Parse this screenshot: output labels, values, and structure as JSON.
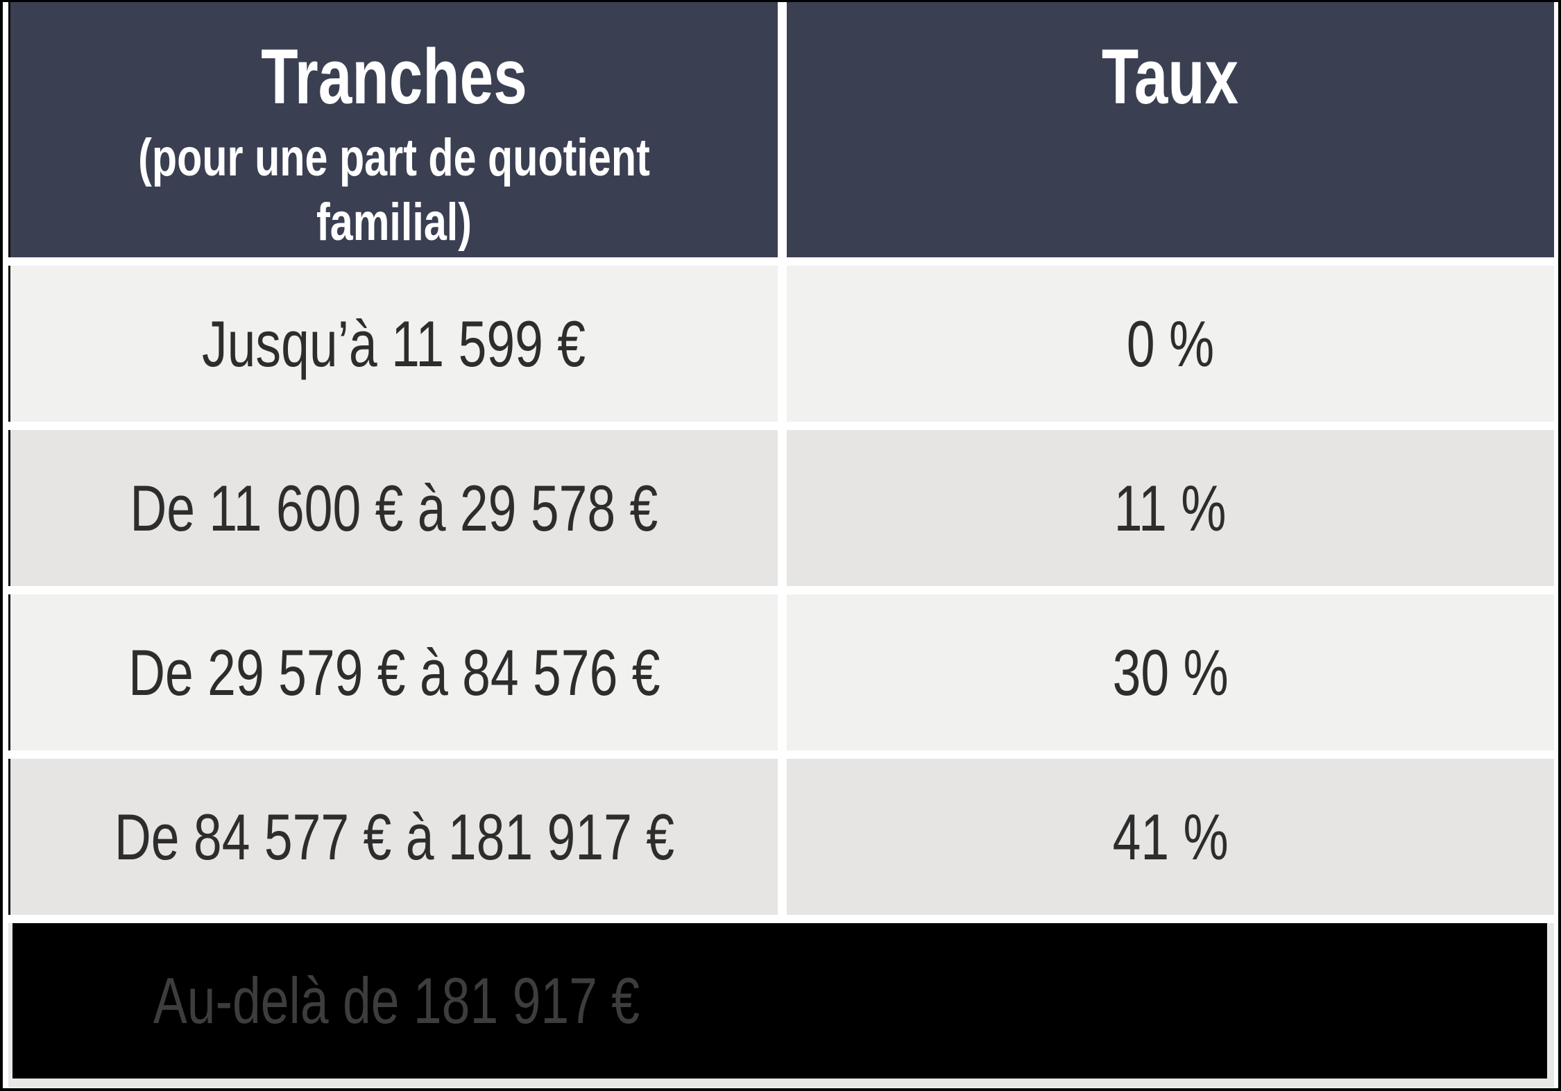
{
  "table": {
    "header": {
      "tranches_title": "Tranches",
      "tranches_subtitle": "(pour une part de quotient familial)",
      "taux_title": "Taux"
    },
    "rows": [
      {
        "tranche": "Jusqu’à 11 599 €",
        "taux": "0 %"
      },
      {
        "tranche": "De 11 600 € à 29 578 €",
        "taux": "11 %"
      },
      {
        "tranche": "De 29 579 € à 84 576 €",
        "taux": "30 %"
      },
      {
        "tranche": "De 84 577 € à 181 917 €",
        "taux": "41 %"
      }
    ],
    "redacted_row": {
      "tranche": "Au-delà de 181 917 €",
      "taux": ""
    }
  },
  "colors": {
    "header_bg": "#3a3f52",
    "header_text": "#ffffff",
    "row_light": "#f1f1ef",
    "row_dark": "#e6e5e3",
    "row_text": "#2d2d2d",
    "redaction_bg": "#000000",
    "redacted_text": "#3d3d3d",
    "redacted_margin": "#e8e8e6",
    "divider": "#ffffff",
    "border": "#000000"
  },
  "chart_data": {
    "type": "table",
    "title": "Barème de l’impôt sur le revenu",
    "columns": [
      "Tranches (pour une part de quotient familial)",
      "Taux"
    ],
    "rows": [
      [
        "Jusqu’à 11 599 €",
        "0 %"
      ],
      [
        "De 11 600 € à 29 578 €",
        "11 %"
      ],
      [
        "De 29 579 € à 84 576 €",
        "30 %"
      ],
      [
        "De 84 577 € à 181 917 €",
        "41 %"
      ],
      [
        "Au-delà de 181 917 €",
        ""
      ]
    ],
    "notes": "Last row is blacked out (redacted); its Taux value is not visible."
  }
}
